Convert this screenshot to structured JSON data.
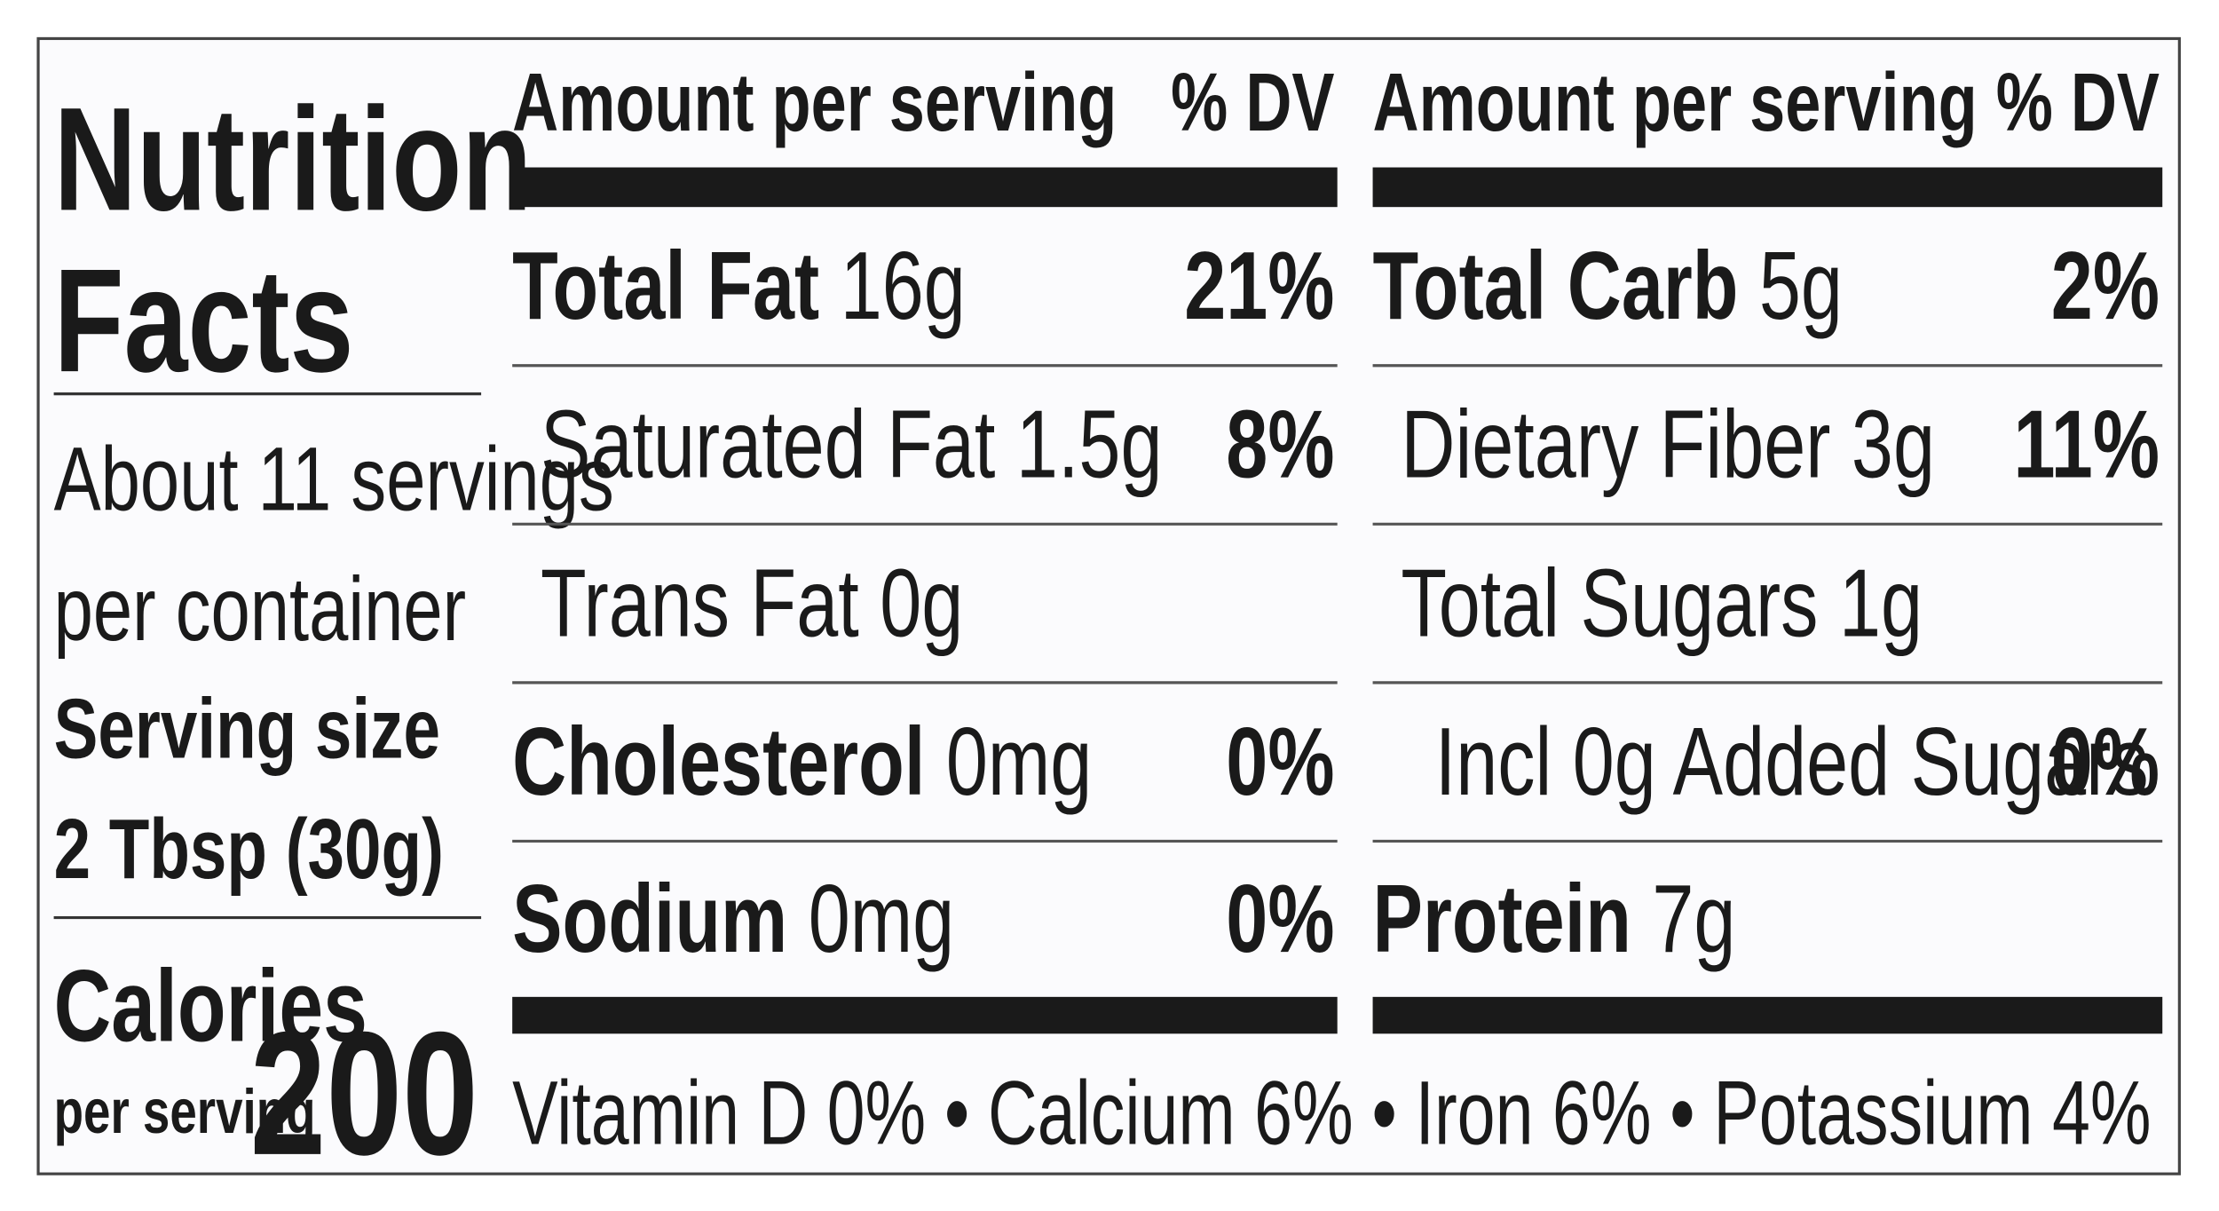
{
  "label": {
    "title_line1": "Nutrition",
    "title_line2": "Facts",
    "servings_line1": "About 11 servings",
    "servings_line2": "per container",
    "serving_size_label": "Serving size",
    "serving_size": "2 Tbsp (30g)",
    "calories_label": "Calories",
    "calories_sub": "per serving",
    "calories": "200",
    "columns": [
      {
        "header": "Amount per serving",
        "dv_header": "% DV",
        "rows": [
          {
            "name": "Total Fat",
            "amount": "16g",
            "dv": "21%",
            "bold": true,
            "indent": 0
          },
          {
            "name": "Saturated Fat",
            "amount": "1.5g",
            "dv": "8%",
            "bold": false,
            "indent": 1
          },
          {
            "name": "Trans Fat",
            "amount": "0g",
            "bold": false,
            "indent": 1
          },
          {
            "name": "Cholesterol",
            "amount": "0mg",
            "dv": "0%",
            "bold": true,
            "indent": 0
          },
          {
            "name": "Sodium",
            "amount": "0mg",
            "dv": "0%",
            "bold": true,
            "indent": 0
          }
        ]
      },
      {
        "header": "Amount per serving",
        "dv_header": "% DV",
        "rows": [
          {
            "name": "Total Carb",
            "amount": "5g",
            "dv": "2%",
            "bold": true,
            "indent": 0
          },
          {
            "name": "Dietary Fiber",
            "amount": "3g",
            "dv": "11%",
            "bold": false,
            "indent": 1
          },
          {
            "name": "Total Sugars",
            "amount": "1g",
            "bold": false,
            "indent": 1
          },
          {
            "name": "Incl 0g Added Sugars",
            "dv": "0%",
            "bold": false,
            "indent": 2
          },
          {
            "name": "Protein",
            "amount": "7g",
            "bold": true,
            "indent": 0
          }
        ]
      }
    ],
    "vitamins": [
      "Vitamin D 0%",
      "Calcium 6%",
      "Iron 6%",
      "Potassium 4%"
    ],
    "separator": "•"
  }
}
